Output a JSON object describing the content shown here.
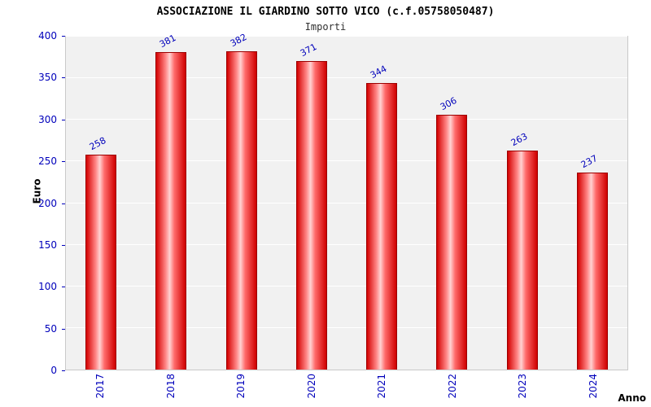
{
  "chart_data": {
    "type": "bar",
    "title": "ASSOCIAZIONE IL GIARDINO SOTTO VICO (c.f.05758050487)",
    "subtitle": "Importi",
    "categories": [
      "2017",
      "2018",
      "2019",
      "2020",
      "2021",
      "2022",
      "2023",
      "2024"
    ],
    "values": [
      258,
      381,
      382,
      371,
      344,
      306,
      263,
      237
    ],
    "xlabel": "Anno",
    "ylabel": "Euro",
    "ylim": [
      0,
      400
    ],
    "ytick_step": 50,
    "grid": true,
    "legend": "none",
    "bar_color": "#ff0000",
    "bar_border_color": "#9c0000",
    "tick_label_color": "#0000bb",
    "plot_background": "#f1f1f1"
  }
}
